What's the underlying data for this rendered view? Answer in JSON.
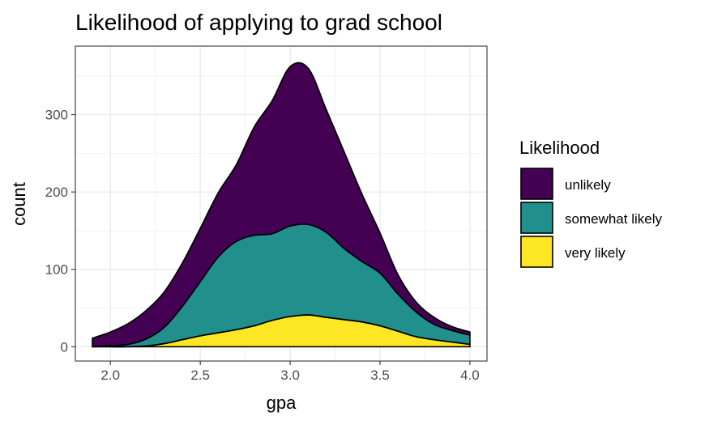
{
  "chart_data": {
    "type": "area",
    "subtype": "stacked-density",
    "title": "Likelihood of applying to grad school",
    "xlabel": "gpa",
    "ylabel": "count",
    "xlim": [
      1.9,
      4.0
    ],
    "ylim": [
      0,
      370
    ],
    "x_ticks": [
      2.0,
      2.5,
      3.0,
      3.5,
      4.0
    ],
    "x_tick_labels": [
      "2.0",
      "2.5",
      "3.0",
      "3.5",
      "4.0"
    ],
    "y_ticks": [
      0,
      100,
      200,
      300
    ],
    "y_tick_labels": [
      "0",
      "100",
      "200",
      "300"
    ],
    "grid": true,
    "legend": {
      "title": "Likelihood",
      "position": "right"
    },
    "x": [
      1.9,
      2.0,
      2.1,
      2.2,
      2.3,
      2.4,
      2.5,
      2.6,
      2.7,
      2.8,
      2.9,
      3.0,
      3.1,
      3.2,
      3.3,
      3.4,
      3.5,
      3.6,
      3.7,
      3.8,
      3.9,
      4.0
    ],
    "series": [
      {
        "name": "very likely",
        "color": "#FDE725",
        "values": [
          0,
          0,
          0,
          1,
          4,
          9,
          14,
          18,
          22,
          27,
          34,
          39,
          41,
          38,
          35,
          32,
          27,
          20,
          13,
          9,
          6,
          3
        ]
      },
      {
        "name": "somewhat likely",
        "color": "#21908C",
        "values": [
          0,
          1,
          3,
          9,
          21,
          43,
          70,
          98,
          114,
          117,
          112,
          117,
          117,
          110,
          92,
          78,
          68,
          48,
          32,
          20,
          15,
          12
        ]
      },
      {
        "name": "unlikely",
        "color": "#440154",
        "values": [
          11,
          18,
          27,
          37,
          46,
          56,
          69,
          83,
          99,
          140,
          172,
          206,
          202,
          159,
          125,
          87,
          52,
          25,
          13,
          9,
          5,
          4
        ]
      }
    ]
  }
}
